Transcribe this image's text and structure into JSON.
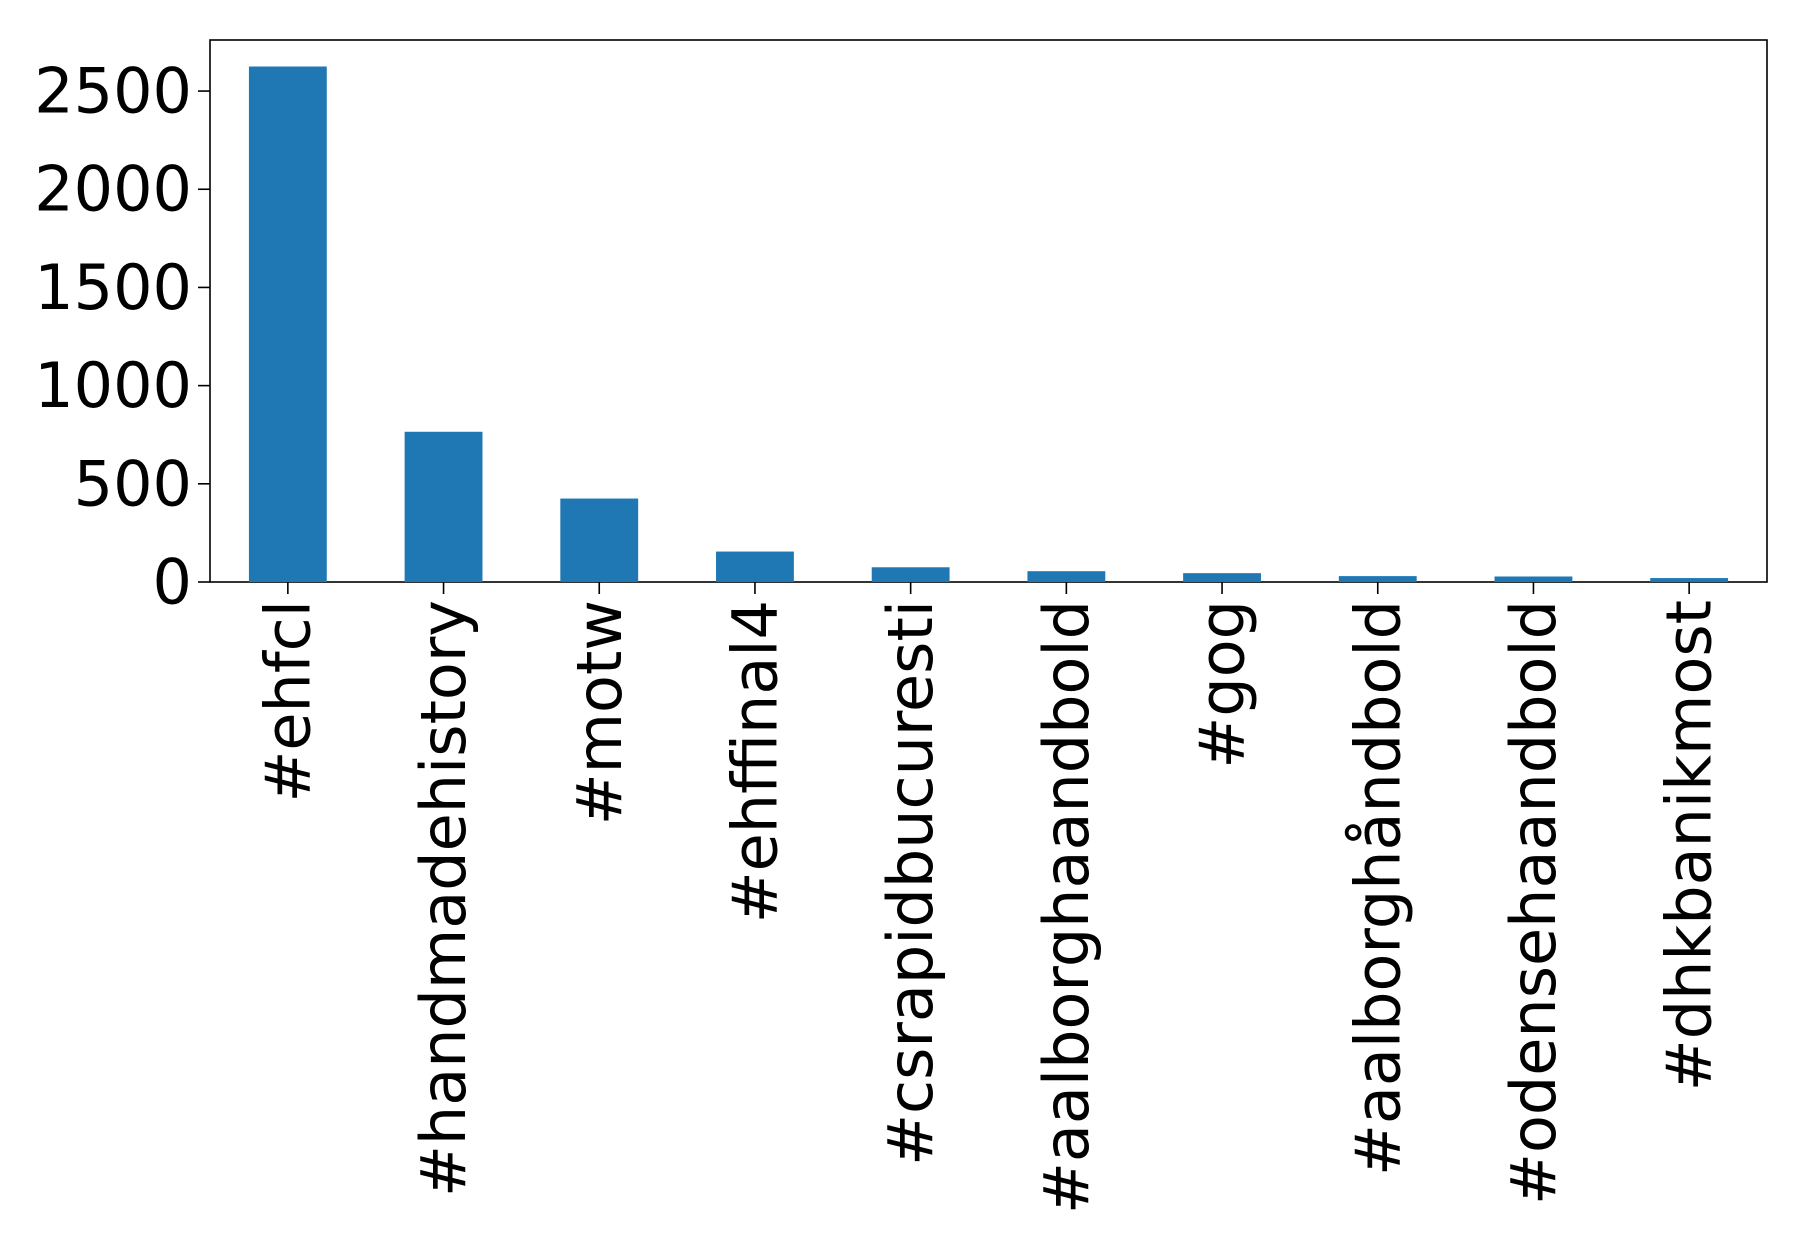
{
  "chart_data": {
    "type": "bar",
    "categories": [
      "#ehfcl",
      "#handmadehistory",
      "#motw",
      "#ehffinal4",
      "#csrapidbucuresti",
      "#aalborghaandbold",
      "#gog",
      "#aalborghåndbold",
      "#odensehaandbold",
      "#dhkbanikmost"
    ],
    "values": [
      2625,
      765,
      425,
      155,
      75,
      55,
      45,
      30,
      28,
      20
    ],
    "title": "",
    "xlabel": "",
    "ylabel": "",
    "ylim": [
      0,
      2760
    ],
    "yticks": [
      0,
      500,
      1000,
      1500,
      2000,
      2500
    ],
    "bar_color": "#1f77b4",
    "grid": false,
    "legend": "none"
  }
}
